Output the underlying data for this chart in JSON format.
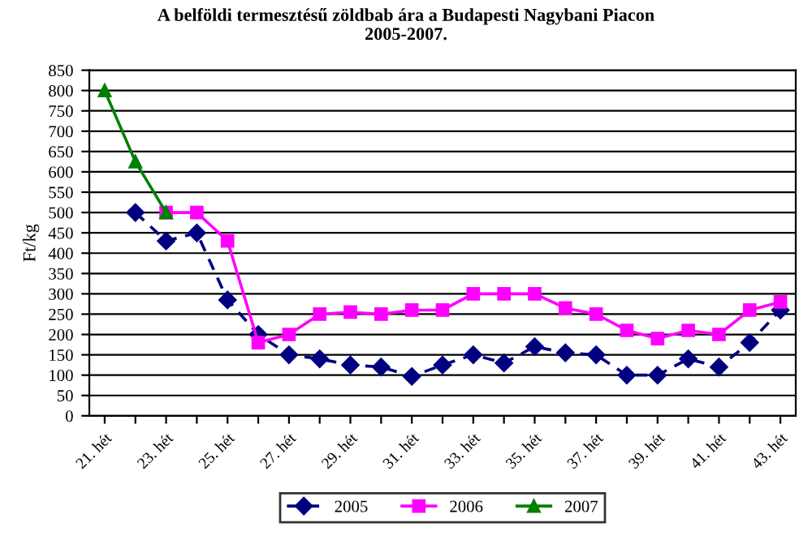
{
  "chart_data": {
    "type": "line",
    "title": "A belföldi termesztésű zöldbab ára a Budapesti Nagybani Piacon\n2005-2007.",
    "ylabel": "Ft/kg",
    "categories": [
      "21. hét",
      null,
      "23. hét",
      null,
      "25. hét",
      null,
      "27. hét",
      null,
      "29. hét",
      null,
      "31. hét",
      null,
      "33. hét",
      null,
      "35. hét",
      null,
      "37. hét",
      null,
      "39. hét",
      null,
      "41. hét",
      null,
      "43. hét"
    ],
    "series": [
      {
        "name": "2005",
        "color": "#000080",
        "marker": "diamond",
        "line_style": "dashed",
        "values": [
          null,
          500,
          430,
          450,
          285,
          200,
          150,
          140,
          125,
          120,
          97,
          125,
          150,
          130,
          170,
          155,
          150,
          100,
          100,
          140,
          120,
          180,
          260
        ]
      },
      {
        "name": "2006",
        "color": "#ff00ff",
        "marker": "square",
        "line_style": "solid",
        "values": [
          null,
          null,
          500,
          500,
          430,
          180,
          200,
          250,
          255,
          250,
          260,
          260,
          300,
          300,
          300,
          265,
          250,
          210,
          190,
          210,
          200,
          260,
          280
        ]
      },
      {
        "name": "2007",
        "color": "#008000",
        "marker": "triangle",
        "line_style": "solid",
        "values": [
          800,
          625,
          500,
          null,
          null,
          null,
          null,
          null,
          null,
          null,
          null,
          null,
          null,
          null,
          null,
          null,
          null,
          null,
          null,
          null,
          null,
          null,
          null
        ]
      }
    ],
    "ylim": [
      0,
      850
    ],
    "yticks": [
      0,
      50,
      100,
      150,
      200,
      250,
      300,
      350,
      400,
      450,
      500,
      550,
      600,
      650,
      700,
      750,
      800,
      850
    ],
    "grid": "y",
    "legend": "bottom"
  }
}
